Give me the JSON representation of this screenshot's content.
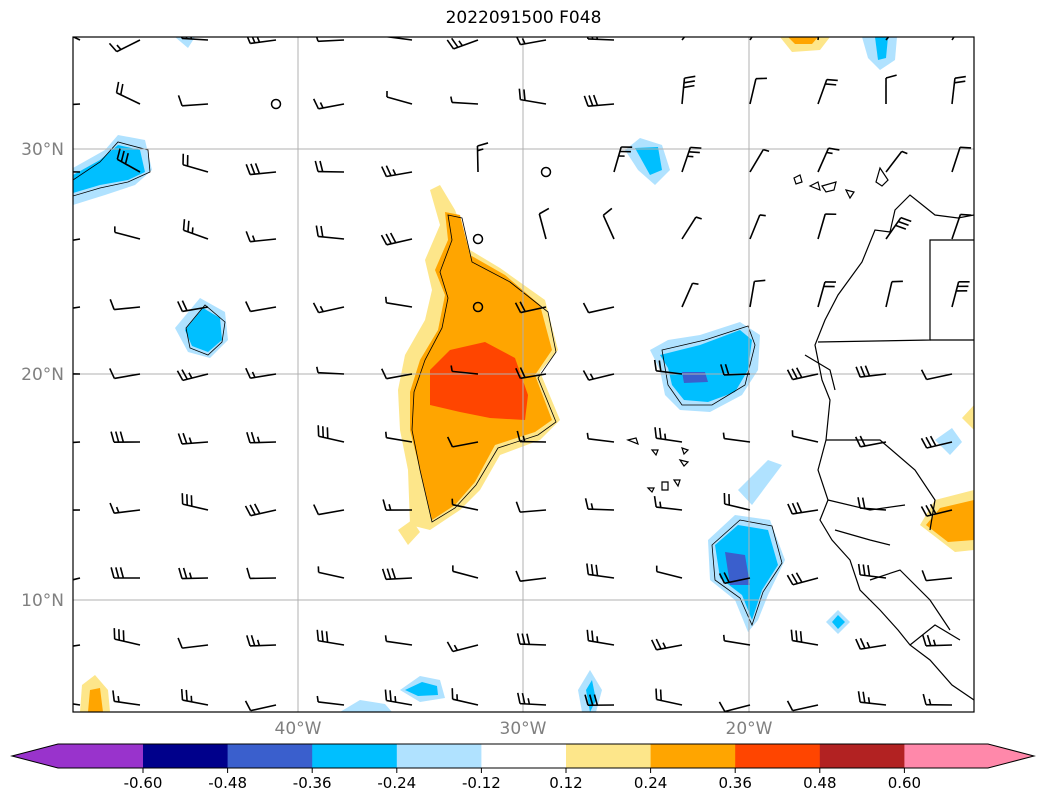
{
  "title": "2022091500 F048",
  "map": {
    "lat_labels": [
      "30°N",
      "20°N",
      "10°N"
    ],
    "lon_labels": [
      "40°W",
      "30°W",
      "20°W"
    ],
    "grid_color": "#b0b0b0",
    "label_color": "#808080"
  },
  "colorbar": {
    "bins": [
      {
        "color": "#9933cc"
      },
      {
        "color": "#00008b"
      },
      {
        "color": "#3a5fcd"
      },
      {
        "color": "#00bfff"
      },
      {
        "color": "#b0e2ff"
      },
      {
        "color": "#ffffff"
      },
      {
        "color": "#fde68a"
      },
      {
        "color": "#ffa500"
      },
      {
        "color": "#ff4500"
      },
      {
        "color": "#b22222"
      },
      {
        "color": "#ff88aa"
      }
    ],
    "tick_labels": [
      "-0.60",
      "-0.48",
      "-0.36",
      "-0.24",
      "-0.12",
      "0.12",
      "0.24",
      "0.36",
      "0.48",
      "0.60"
    ]
  }
}
